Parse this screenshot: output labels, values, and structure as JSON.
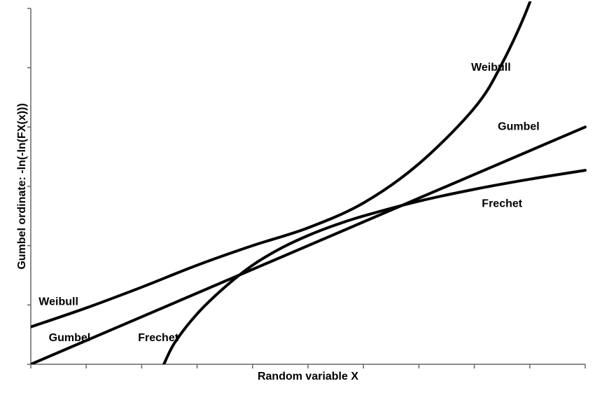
{
  "chart_data": {
    "type": "line",
    "title": "",
    "xlabel": "Random variable X",
    "ylabel": "Gumbel ordinate: -ln(-ln(FX(x)))",
    "xlim": [
      0,
      10
    ],
    "ylim": [
      0,
      6
    ],
    "x_ticks_count": 11,
    "y_ticks_count": 7,
    "grid": false,
    "legend": "none",
    "series": [
      {
        "name": "Gumbel",
        "x": [
          0,
          10
        ],
        "y": [
          0,
          4
        ]
      },
      {
        "name": "Weibull",
        "x": [
          0,
          1,
          2,
          3,
          4,
          5,
          6,
          7,
          8,
          8.5,
          9,
          9.3
        ],
        "y": [
          0.63,
          0.95,
          1.3,
          1.67,
          2.0,
          2.3,
          2.72,
          3.38,
          4.32,
          5.07,
          6.1,
          7.05
        ]
      },
      {
        "name": "Frechet",
        "x": [
          2.4,
          2.6,
          3.0,
          3.5,
          4.0,
          4.5,
          5.0,
          5.5,
          6.0,
          7.0,
          8.0,
          9.0,
          10.0
        ],
        "y": [
          0.0,
          0.37,
          0.85,
          1.3,
          1.67,
          1.95,
          2.17,
          2.35,
          2.5,
          2.75,
          2.95,
          3.12,
          3.27
        ]
      }
    ],
    "annotations": [
      {
        "series": "Weibull",
        "text": "Weibull",
        "x": 8.3,
        "y": 5.0
      },
      {
        "series": "Gumbel",
        "text": "Gumbel",
        "x": 8.8,
        "y": 4.0
      },
      {
        "series": "Frechet",
        "text": "Frechet",
        "x": 8.5,
        "y": 2.7
      },
      {
        "series": "Weibull",
        "text": "Weibull",
        "x": 0.5,
        "y": 1.05
      },
      {
        "series": "Gumbel",
        "text": "Gumbel",
        "x": 0.7,
        "y": 0.44
      },
      {
        "series": "Frechet",
        "text": "Frechet",
        "x": 2.3,
        "y": 0.44
      }
    ]
  }
}
